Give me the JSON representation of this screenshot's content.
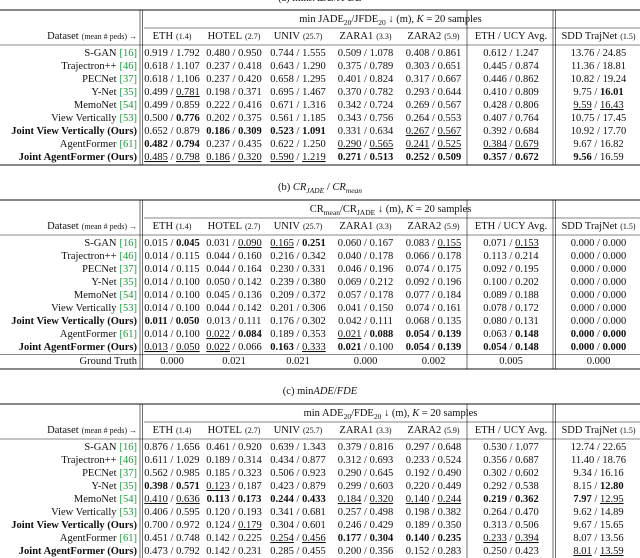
{
  "caption_top": [
    [
      "(a) min",
      "n"
    ],
    [
      "JADE",
      "i"
    ],
    [
      "/",
      "n"
    ],
    [
      "JFDE",
      "i"
    ]
  ],
  "tables": [
    {
      "header": [
        [
          "min JADE",
          "n"
        ],
        [
          "20",
          "s"
        ],
        [
          "/JFDE",
          "n"
        ],
        [
          "20",
          "s"
        ],
        [
          " ↓ (m), ",
          "n"
        ],
        [
          "K",
          "i"
        ],
        [
          " = 20 samples",
          "n"
        ]
      ],
      "dataset_label": [
        "Dataset",
        "(mean # peds) →"
      ],
      "columns": [
        [
          "ETH",
          "(1.4)"
        ],
        [
          "HOTEL",
          "(2.7)"
        ],
        [
          "UNIV",
          "(25.7)"
        ],
        [
          "ZARA1",
          "(3.3)"
        ],
        [
          "ZARA2",
          "(5.9)"
        ],
        [
          "ETH / UCY Avg.",
          ""
        ],
        [
          "SDD TrajNet",
          "(1.5)"
        ]
      ],
      "rows": [
        {
          "method": "S-GAN",
          "ref": "[16]",
          "cells": [
            "0.919 / 1.792",
            "0.480 / 0.950",
            "0.744 / 1.555",
            "0.509 / 1.078",
            "0.408 / 0.861",
            "0.612 / 1.247",
            "13.76 / 24.85"
          ],
          "styles": [
            "--",
            "--",
            "--",
            "--",
            "--",
            "--",
            "--"
          ]
        },
        {
          "method": "Trajectron++",
          "ref": "[46]",
          "cells": [
            "0.618 / 1.107",
            "0.237 / 0.418",
            "0.643 / 1.290",
            "0.375 / 0.789",
            "0.303 / 0.651",
            "0.445 / 0.874",
            "11.36 / 18.81"
          ],
          "styles": [
            "--",
            "--",
            "--",
            "--",
            "--",
            "--",
            "--"
          ]
        },
        {
          "method": "PECNet",
          "ref": "[37]",
          "cells": [
            "0.618 / 1.106",
            "0.237 / 0.420",
            "0.658 / 1.295",
            "0.401 / 0.824",
            "0.317 / 0.667",
            "0.446 / 0.862",
            "10.82 / 19.24"
          ],
          "styles": [
            "--",
            "--",
            "--",
            "--",
            "--",
            "--",
            "--"
          ]
        },
        {
          "method": "Y-Net",
          "ref": "[35]",
          "cells": [
            "0.499 / 0.781",
            "0.198 / 0.371",
            "0.695 / 1.467",
            "0.370 / 0.782",
            "0.293 / 0.644",
            "0.410 / 0.809",
            "9.75 / 16.01"
          ],
          "styles": [
            "-u",
            "--",
            "--",
            "--",
            "--",
            "--",
            "-b"
          ]
        },
        {
          "method": "MemoNet",
          "ref": "[54]",
          "cells": [
            "0.499 / 0.859",
            "0.222 / 0.416",
            "0.671 / 1.316",
            "0.342 / 0.724",
            "0.269 / 0.567",
            "0.428 / 0.806",
            "9.59 / 16.43"
          ],
          "styles": [
            "--",
            "--",
            "--",
            "--",
            "--",
            "--",
            "uu"
          ]
        },
        {
          "method": "View Vertically",
          "ref": "[53]",
          "cells": [
            "0.500 / 0.776",
            "0.202 / 0.375",
            "0.561 / 1.185",
            "0.343 / 0.756",
            "0.264 / 0.553",
            "0.407 / 0.764",
            "10.75 / 17.45"
          ],
          "styles": [
            "-b",
            "--",
            "--",
            "--",
            "--",
            "--",
            "--"
          ]
        },
        {
          "method": "Joint View Vertically (Ours)",
          "ref": "",
          "bold": true,
          "cells": [
            "0.652 / 0.879",
            "0.186 / 0.309",
            "0.523 / 1.091",
            "0.331 / 0.634",
            "0.267 / 0.567",
            "0.392 / 0.684",
            "10.92 / 17.70"
          ],
          "styles": [
            "--",
            "bb",
            "bb",
            "--",
            "uu",
            "--",
            "--"
          ]
        },
        {
          "method": "AgentFormer",
          "ref": "[61]",
          "cells": [
            "0.482 / 0.794",
            "0.237 / 0.435",
            "0.622 / 1.250",
            "0.290 / 0.565",
            "0.241 / 0.525",
            "0.384 / 0.679",
            "9.67 / 16.82"
          ],
          "styles": [
            "bb",
            "--",
            "--",
            "uu",
            "uu",
            "uu",
            "--"
          ]
        },
        {
          "method": "Joint AgentFormer (Ours)",
          "ref": "",
          "bold": true,
          "cells": [
            "0.485 / 0.798",
            "0.186 / 0.320",
            "0.590 / 1.219",
            "0.271 / 0.513",
            "0.252 / 0.509",
            "0.357 / 0.672",
            "9.56 / 16.59"
          ],
          "styles": [
            "uu",
            "uu",
            "uu",
            "bb",
            "bb",
            "bb",
            "b-"
          ]
        }
      ]
    },
    {
      "caption": [
        [
          "(b) ",
          "n"
        ],
        [
          "CR",
          "i"
        ],
        [
          "JADE",
          "si"
        ],
        [
          " / ",
          "n"
        ],
        [
          "CR",
          "i"
        ],
        [
          "mean",
          "si"
        ]
      ],
      "header": [
        [
          "CR",
          "n"
        ],
        [
          "mean",
          "s"
        ],
        [
          "/CR",
          "n"
        ],
        [
          "JADE",
          "s"
        ],
        [
          " ↓ (m), ",
          "n"
        ],
        [
          "K",
          "i"
        ],
        [
          " = 20 samples",
          "n"
        ]
      ],
      "dataset_label": [
        "Dataset",
        "(mean # peds) →"
      ],
      "columns": [
        [
          "ETH",
          "(1.4)"
        ],
        [
          "HOTEL",
          "(2.7)"
        ],
        [
          "UNIV",
          "(25.7)"
        ],
        [
          "ZARA1",
          "(3.3)"
        ],
        [
          "ZARA2",
          "(5.9)"
        ],
        [
          "ETH / UCY Avg.",
          ""
        ],
        [
          "SDD TrajNet",
          "(1.5)"
        ]
      ],
      "rows": [
        {
          "method": "S-GAN",
          "ref": "[16]",
          "cells": [
            "0.015 / 0.045",
            "0.031 / 0.090",
            "0.165 / 0.251",
            "0.060 / 0.167",
            "0.083 / 0.155",
            "0.071 / 0.153",
            "0.000 / 0.000"
          ],
          "styles": [
            "-b",
            "-u",
            "ub",
            "--",
            "-u",
            "-u",
            "--"
          ]
        },
        {
          "method": "Trajectron++",
          "ref": "[46]",
          "cells": [
            "0.014 / 0.115",
            "0.044 / 0.160",
            "0.216 / 0.342",
            "0.040 / 0.178",
            "0.066 / 0.178",
            "0.113 / 0.214",
            "0.000 / 0.000"
          ],
          "styles": [
            "--",
            "--",
            "--",
            "--",
            "--",
            "--",
            "--"
          ]
        },
        {
          "method": "PECNet",
          "ref": "[37]",
          "cells": [
            "0.014 / 0.115",
            "0.044 / 0.164",
            "0.230 / 0.331",
            "0.046 / 0.196",
            "0.074 / 0.175",
            "0.092 / 0.195",
            "0.000 / 0.000"
          ],
          "styles": [
            "--",
            "--",
            "--",
            "--",
            "--",
            "--",
            "--"
          ]
        },
        {
          "method": "Y-Net",
          "ref": "[35]",
          "cells": [
            "0.014 / 0.100",
            "0.050 / 0.142",
            "0.239 / 0.380",
            "0.069 / 0.212",
            "0.092 / 0.196",
            "0.100 / 0.202",
            "0.000 / 0.000"
          ],
          "styles": [
            "--",
            "--",
            "--",
            "--",
            "--",
            "--",
            "--"
          ]
        },
        {
          "method": "MemoNet",
          "ref": "[54]",
          "cells": [
            "0.014 / 0.100",
            "0.045 / 0.136",
            "0.209 / 0.372",
            "0.057 / 0.178",
            "0.077 / 0.184",
            "0.089 / 0.188",
            "0.000 / 0.000"
          ],
          "styles": [
            "--",
            "--",
            "--",
            "--",
            "--",
            "--",
            "--"
          ]
        },
        {
          "method": "View Vertically",
          "ref": "[53]",
          "cells": [
            "0.014 / 0.100",
            "0.044 / 0.142",
            "0.201 / 0.306",
            "0.041 / 0.150",
            "0.074 / 0.161",
            "0.078 / 0.172",
            "0.000 / 0.000"
          ],
          "styles": [
            "--",
            "--",
            "--",
            "--",
            "--",
            "--",
            "--"
          ]
        },
        {
          "method": "Joint View Vertically (Ours)",
          "ref": "",
          "bold": true,
          "cells": [
            "0.011 / 0.050",
            "0.013 / 0.111",
            "0.176 / 0.302",
            "0.042 / 0.111",
            "0.068 / 0.135",
            "0.080 / 0.131",
            "0.000 / 0.000"
          ],
          "styles": [
            "bb",
            "--",
            "--",
            "--",
            "--",
            "--",
            "--"
          ]
        },
        {
          "method": "AgentFormer",
          "ref": "[61]",
          "cells": [
            "0.014 / 0.100",
            "0.022 / 0.084",
            "0.189 / 0.353",
            "0.021 / 0.088",
            "0.054 / 0.139",
            "0.063 / 0.148",
            "0.000 / 0.000"
          ],
          "styles": [
            "--",
            "ub",
            "--",
            "ub",
            "bb",
            "-b",
            "bb"
          ]
        },
        {
          "method": "Joint AgentFormer (Ours)",
          "ref": "",
          "bold": true,
          "cells": [
            "0.013 / 0.050",
            "0.022 / 0.066",
            "0.163 / 0.333",
            "0.021 / 0.100",
            "0.054 / 0.139",
            "0.054 / 0.148",
            "0.000 / 0.000"
          ],
          "styles": [
            "uu",
            "u-",
            "bu",
            "b-",
            "bb",
            "bb",
            "bb"
          ]
        },
        {
          "method": "Ground Truth",
          "ref": "",
          "cells": [
            "0.000",
            "0.021",
            "0.021",
            "0.000",
            "0.002",
            "0.005",
            "0.000"
          ],
          "styles": [
            "-",
            "-",
            "-",
            "-",
            "-",
            "-",
            "-"
          ]
        }
      ]
    },
    {
      "caption": [
        [
          "(c) min",
          "n"
        ],
        [
          "ADE",
          "i"
        ],
        [
          "/",
          "n"
        ],
        [
          "FDE",
          "i"
        ]
      ],
      "header": [
        [
          "min ADE",
          "n"
        ],
        [
          "20",
          "s"
        ],
        [
          "/FDE",
          "n"
        ],
        [
          "20",
          "s"
        ],
        [
          " ↓ (m), ",
          "n"
        ],
        [
          "K",
          "i"
        ],
        [
          " = 20 samples",
          "n"
        ]
      ],
      "dataset_label": [
        "Dataset",
        "(mean # peds) →"
      ],
      "columns": [
        [
          "ETH",
          "(1.4)"
        ],
        [
          "HOTEL",
          "(2.7)"
        ],
        [
          "UNIV",
          "(25.7)"
        ],
        [
          "ZARA1",
          "(3.3)"
        ],
        [
          "ZARA2",
          "(5.9)"
        ],
        [
          "ETH / UCY Avg.",
          ""
        ],
        [
          "SDD TrajNet",
          "(1.5)"
        ]
      ],
      "rows": [
        {
          "method": "S-GAN",
          "ref": "[16]",
          "cells": [
            "0.876 / 1.656",
            "0.461 / 0.920",
            "0.639 / 1.343",
            "0.379 / 0.816",
            "0.297 / 0.648",
            "0.530 / 1.077",
            "12.74 / 22.65"
          ],
          "styles": [
            "--",
            "--",
            "--",
            "--",
            "--",
            "--",
            "--"
          ]
        },
        {
          "method": "Trajectron++",
          "ref": "[46]",
          "cells": [
            "0.611 / 1.029",
            "0.189 / 0.314",
            "0.434 / 0.877",
            "0.312 / 0.693",
            "0.233 / 0.524",
            "0.356 / 0.687",
            "11.40 / 18.76"
          ],
          "styles": [
            "--",
            "--",
            "--",
            "--",
            "--",
            "--",
            "--"
          ]
        },
        {
          "method": "PECNet",
          "ref": "[37]",
          "cells": [
            "0.562 / 0.985",
            "0.185 / 0.323",
            "0.506 / 0.923",
            "0.290 / 0.645",
            "0.192 / 0.490",
            "0.302 / 0.602",
            "9.34 / 16.16"
          ],
          "styles": [
            "--",
            "--",
            "--",
            "--",
            "--",
            "--",
            "--"
          ]
        },
        {
          "method": "Y-Net",
          "ref": "[35]",
          "cells": [
            "0.398 / 0.571",
            "0.123 / 0.187",
            "0.423 / 0.879",
            "0.299 / 0.603",
            "0.220 / 0.449",
            "0.292 / 0.538",
            "8.15 / 12.80"
          ],
          "styles": [
            "bb",
            "u-",
            "--",
            "--",
            "--",
            "--",
            "-b"
          ]
        },
        {
          "method": "MemoNet",
          "ref": "[54]",
          "cells": [
            "0.410 / 0.636",
            "0.113 / 0.173",
            "0.244 / 0.433",
            "0.184 / 0.320",
            "0.140 / 0.244",
            "0.219 / 0.362",
            "7.97 / 12.95"
          ],
          "styles": [
            "uu",
            "bb",
            "bb",
            "uu",
            "uu",
            "bb",
            "bu"
          ]
        },
        {
          "method": "View Vertically",
          "ref": "[53]",
          "cells": [
            "0.406 / 0.595",
            "0.120 / 0.193",
            "0.341 / 0.681",
            "0.257 / 0.498",
            "0.198 / 0.382",
            "0.264 / 0.470",
            "9.62 / 14.89"
          ],
          "styles": [
            "--",
            "--",
            "--",
            "--",
            "--",
            "--",
            "--"
          ]
        },
        {
          "method": "Joint View Vertically (Ours)",
          "ref": "",
          "bold": true,
          "cells": [
            "0.700 / 0.972",
            "0.124 / 0.179",
            "0.304 / 0.601",
            "0.246 / 0.429",
            "0.189 / 0.350",
            "0.313 / 0.506",
            "9.67 / 15.65"
          ],
          "styles": [
            "--",
            "-u",
            "--",
            "--",
            "--",
            "--",
            "--"
          ]
        },
        {
          "method": "AgentFormer",
          "ref": "[61]",
          "cells": [
            "0.451 / 0.748",
            "0.142 / 0.225",
            "0.254 / 0.456",
            "0.177 / 0.304",
            "0.140 / 0.235",
            "0.233 / 0.394",
            "8.07 / 13.56"
          ],
          "styles": [
            "--",
            "--",
            "uu",
            "bb",
            "bb",
            "uu",
            "--"
          ]
        },
        {
          "method": "Joint AgentFormer (Ours)",
          "ref": "",
          "bold": true,
          "cells": [
            "0.473 / 0.792",
            "0.142 / 0.231",
            "0.285 / 0.455",
            "0.200 / 0.356",
            "0.152 / 0.283",
            "0.250 / 0.423",
            "8.01 / 13.59"
          ],
          "styles": [
            "--",
            "--",
            "--",
            "--",
            "--",
            "--",
            "uu"
          ]
        }
      ]
    }
  ]
}
